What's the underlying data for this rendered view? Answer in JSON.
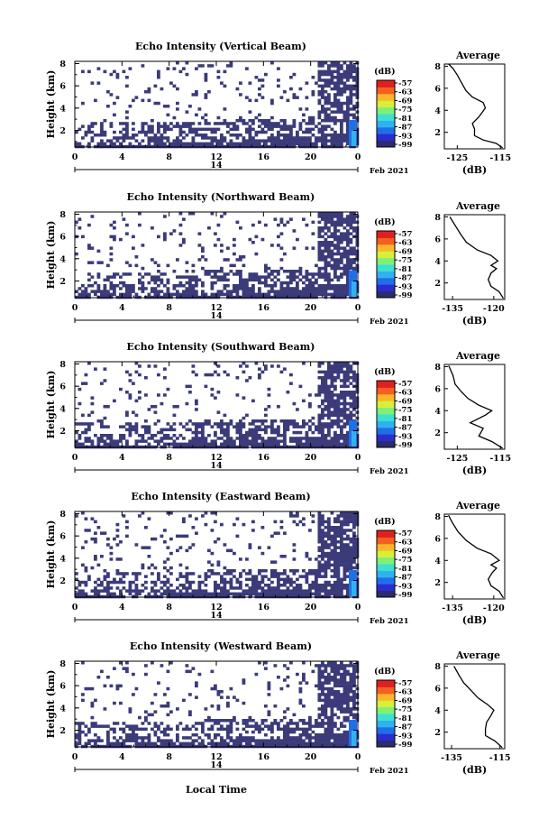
{
  "figure": {
    "xlabel_bottom": "Local Time",
    "date_label": "Feb 2021",
    "day_label": "14",
    "colorbar_unit": "(dB)",
    "average_title": "Average",
    "average_xlabel": "(dB)",
    "height_label": "Height (km)"
  },
  "colors": {
    "low": "#3b3b7a",
    "scale": [
      "#2b2b6e",
      "#2c2ccf",
      "#1f6fe8",
      "#2fb3f0",
      "#3fe0d0",
      "#7ef07a",
      "#d8ef3a",
      "#fbb62a",
      "#f36020",
      "#e02020"
    ]
  },
  "chart_data": [
    {
      "type": "heatmap",
      "title": "Echo Intensity (Vertical Beam)",
      "ylabel": "Height (km)",
      "xlabel": "Local Time",
      "x_ticks": [
        "0",
        "4",
        "8",
        "12",
        "16",
        "20",
        "0"
      ],
      "y_ticks": [
        "2",
        "4",
        "6",
        "8"
      ],
      "xlim": [
        0,
        24
      ],
      "ylim": [
        0.5,
        8.2
      ],
      "colorbar_ticks": [
        "-57",
        "-63",
        "-69",
        "-75",
        "-81",
        "-87",
        "-93",
        "-99"
      ],
      "average": {
        "title": "Average",
        "xlabel": "(dB)",
        "x_ticks": [
          "-125",
          "-115"
        ],
        "y_ticks": [
          "2",
          "4",
          "6",
          "8"
        ],
        "xlim": [
          -128,
          -114
        ],
        "profile": [
          [
            -114.5,
            0.6
          ],
          [
            -116,
            1.0
          ],
          [
            -119,
            1.3
          ],
          [
            -121,
            1.7
          ],
          [
            -121,
            2.3
          ],
          [
            -121.5,
            2.8
          ],
          [
            -120,
            3.4
          ],
          [
            -118.5,
            4.2
          ],
          [
            -119,
            4.7
          ],
          [
            -121.5,
            5.2
          ],
          [
            -123,
            5.8
          ],
          [
            -124,
            6.5
          ],
          [
            -125,
            7.2
          ],
          [
            -126,
            7.8
          ],
          [
            -127,
            8.2
          ]
        ]
      }
    },
    {
      "type": "heatmap",
      "title": "Echo Intensity (Northward Beam)",
      "ylabel": "Height (km)",
      "x_ticks": [
        "0",
        "4",
        "8",
        "12",
        "16",
        "20",
        "0"
      ],
      "y_ticks": [
        "2",
        "4",
        "6",
        "8"
      ],
      "xlim": [
        0,
        24
      ],
      "ylim": [
        0.5,
        8.2
      ],
      "colorbar_ticks": [
        "-57",
        "-63",
        "-69",
        "-75",
        "-81",
        "-87",
        "-93",
        "-99"
      ],
      "average": {
        "title": "Average",
        "xlabel": "(dB)",
        "x_ticks": [
          "-135",
          "-120"
        ],
        "y_ticks": [
          "2",
          "4",
          "6",
          "8"
        ],
        "xlim": [
          -138,
          -116
        ],
        "profile": [
          [
            -116.5,
            0.6
          ],
          [
            -118,
            1.2
          ],
          [
            -121,
            1.7
          ],
          [
            -122,
            2.3
          ],
          [
            -121,
            2.9
          ],
          [
            -119,
            3.3
          ],
          [
            -121,
            3.6
          ],
          [
            -118.5,
            4.0
          ],
          [
            -121,
            4.5
          ],
          [
            -126,
            5.0
          ],
          [
            -130,
            5.7
          ],
          [
            -132,
            6.4
          ],
          [
            -134,
            7.2
          ],
          [
            -136,
            8.0
          ]
        ]
      }
    },
    {
      "type": "heatmap",
      "title": "Echo Intensity (Southward Beam)",
      "ylabel": "Height (km)",
      "x_ticks": [
        "0",
        "4",
        "8",
        "12",
        "16",
        "20",
        "0"
      ],
      "y_ticks": [
        "2",
        "4",
        "6",
        "8"
      ],
      "xlim": [
        0,
        24
      ],
      "ylim": [
        0.5,
        8.2
      ],
      "colorbar_ticks": [
        "-57",
        "-63",
        "-69",
        "-75",
        "-81",
        "-87",
        "-93",
        "-99"
      ],
      "average": {
        "title": "Average",
        "xlabel": "(dB)",
        "x_ticks": [
          "-125",
          "-115"
        ],
        "y_ticks": [
          "2",
          "4",
          "6",
          "8"
        ],
        "xlim": [
          -128,
          -114
        ],
        "profile": [
          [
            -114.5,
            0.6
          ],
          [
            -117,
            1.2
          ],
          [
            -120,
            1.7
          ],
          [
            -119,
            2.4
          ],
          [
            -122,
            2.9
          ],
          [
            -118.5,
            3.6
          ],
          [
            -117,
            4.0
          ],
          [
            -120,
            4.5
          ],
          [
            -122.5,
            5.1
          ],
          [
            -124,
            5.7
          ],
          [
            -125.5,
            6.4
          ],
          [
            -126,
            7.2
          ],
          [
            -127,
            8.1
          ]
        ]
      }
    },
    {
      "type": "heatmap",
      "title": "Echo Intensity (Eastward Beam)",
      "ylabel": "Height (km)",
      "x_ticks": [
        "0",
        "4",
        "8",
        "12",
        "16",
        "20",
        "0"
      ],
      "y_ticks": [
        "2",
        "4",
        "6",
        "8"
      ],
      "xlim": [
        0,
        24
      ],
      "ylim": [
        0.5,
        8.2
      ],
      "colorbar_ticks": [
        "-57",
        "-63",
        "-69",
        "-75",
        "-81",
        "-87",
        "-93",
        "-99"
      ],
      "average": {
        "title": "Average",
        "xlabel": "(dB)",
        "x_ticks": [
          "-135",
          "-120"
        ],
        "y_ticks": [
          "2",
          "4",
          "6",
          "8"
        ],
        "xlim": [
          -138,
          -116
        ],
        "profile": [
          [
            -116.5,
            0.6
          ],
          [
            -118,
            1.2
          ],
          [
            -121,
            1.7
          ],
          [
            -122,
            2.3
          ],
          [
            -120.5,
            2.9
          ],
          [
            -119,
            3.3
          ],
          [
            -121,
            3.6
          ],
          [
            -118,
            4.0
          ],
          [
            -121,
            4.6
          ],
          [
            -126,
            5.1
          ],
          [
            -130,
            5.8
          ],
          [
            -133,
            6.6
          ],
          [
            -135,
            7.4
          ],
          [
            -136.5,
            8.1
          ]
        ]
      }
    },
    {
      "type": "heatmap",
      "title": "Echo Intensity (Westward Beam)",
      "ylabel": "Height (km)",
      "xlabel": "Local Time",
      "x_ticks": [
        "0",
        "4",
        "8",
        "12",
        "16",
        "20",
        "0"
      ],
      "y_ticks": [
        "2",
        "4",
        "6",
        "8"
      ],
      "xlim": [
        0,
        24
      ],
      "ylim": [
        0.5,
        8.2
      ],
      "colorbar_ticks": [
        "-57",
        "-63",
        "-69",
        "-75",
        "-81",
        "-87",
        "-93",
        "-99"
      ],
      "average": {
        "title": "Average",
        "xlabel": "(dB)",
        "x_ticks": [
          "-135",
          "-115"
        ],
        "y_ticks": [
          "2",
          "4",
          "6",
          "8"
        ],
        "xlim": [
          -138,
          -113
        ],
        "profile": [
          [
            -114,
            0.6
          ],
          [
            -117,
            1.2
          ],
          [
            -121,
            1.7
          ],
          [
            -121,
            2.3
          ],
          [
            -120.5,
            2.9
          ],
          [
            -119,
            3.4
          ],
          [
            -117.5,
            4.0
          ],
          [
            -120,
            4.5
          ],
          [
            -124,
            5.1
          ],
          [
            -127,
            5.8
          ],
          [
            -130,
            6.5
          ],
          [
            -132,
            7.2
          ],
          [
            -134,
            8.0
          ]
        ]
      }
    }
  ]
}
